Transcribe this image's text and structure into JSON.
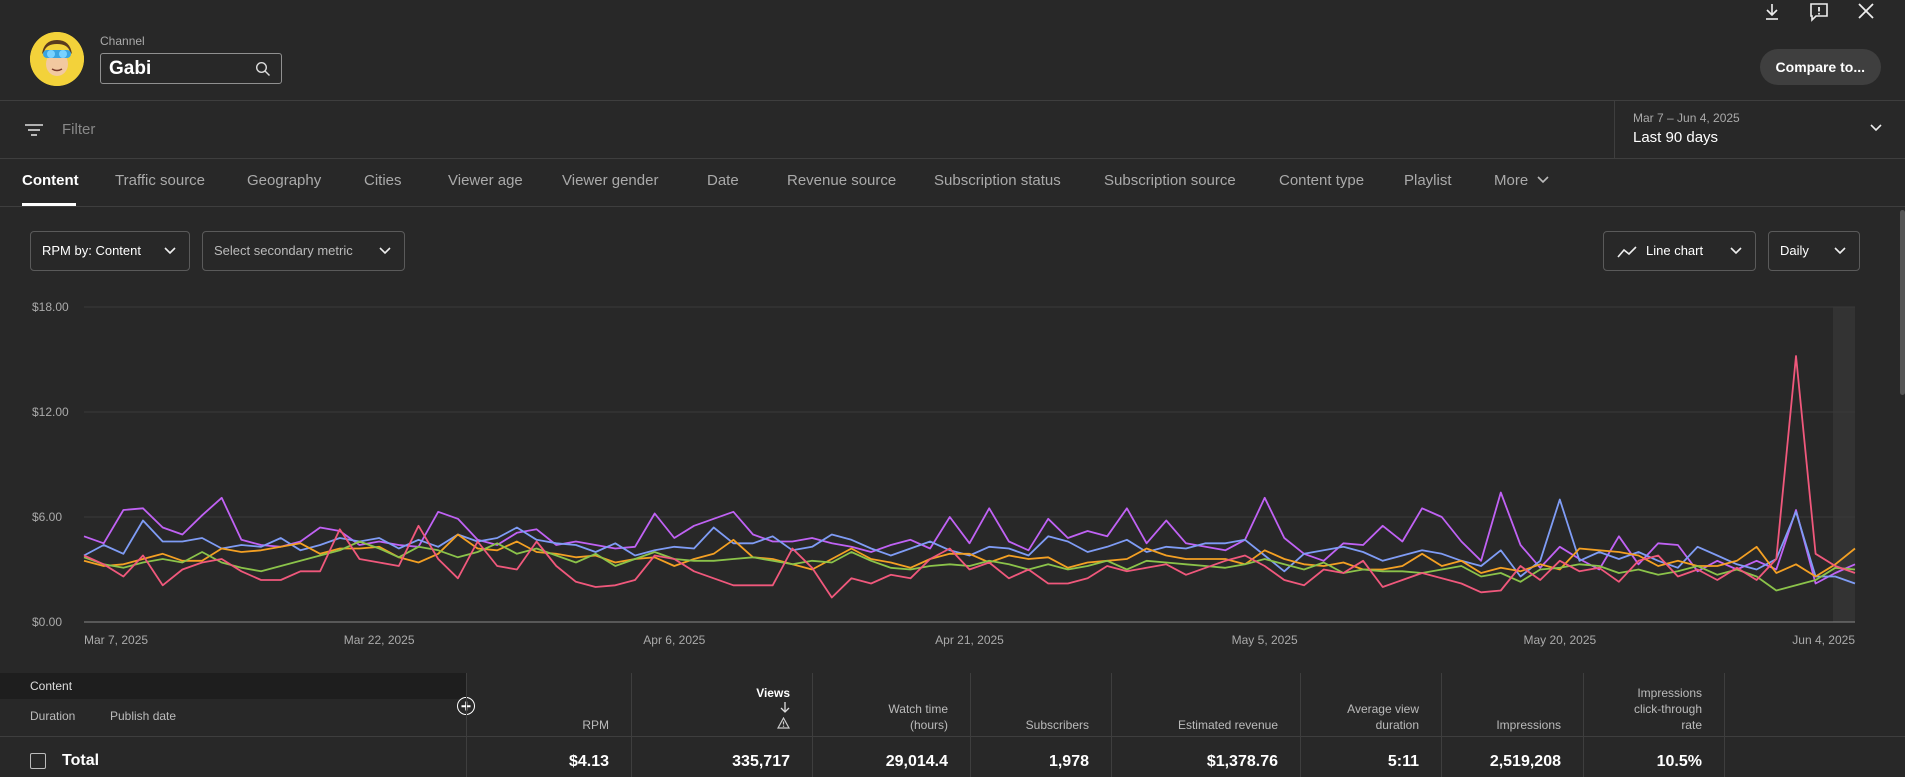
{
  "header": {
    "channel_label": "Channel",
    "channel_name": "Gabi",
    "compare_label": "Compare to..."
  },
  "filter": {
    "placeholder": "Filter"
  },
  "date_range": {
    "range": "Mar 7 – Jun 4, 2025",
    "preset": "Last 90 days"
  },
  "tabs": [
    "Content",
    "Traffic source",
    "Geography",
    "Cities",
    "Viewer age",
    "Viewer gender",
    "Date",
    "Revenue source",
    "Subscription status",
    "Subscription source",
    "Content type",
    "Playlist",
    "More"
  ],
  "controls": {
    "primary_metric": "RPM by: Content",
    "secondary_metric": "Select secondary metric",
    "chart_type": "Line chart",
    "interval": "Daily"
  },
  "chart_data": {
    "type": "line",
    "x_start": "Mar 7, 2025",
    "x_ticks": [
      "Mar 7, 2025",
      "Mar 22, 2025",
      "Apr 6, 2025",
      "Apr 21, 2025",
      "May 5, 2025",
      "May 20, 2025",
      "Jun 4, 2025"
    ],
    "y_ticks": [
      "$18.00",
      "$12.00",
      "$6.00",
      "$0.00"
    ],
    "ylim": [
      0,
      18
    ],
    "grid": true,
    "series": [
      {
        "color": "#c062f4",
        "values": [
          4.9,
          4.5,
          6.4,
          6.5,
          5.4,
          5.0,
          6.1,
          7.1,
          4.7,
          4.4,
          4.3,
          4.6,
          5.4,
          5.2,
          4.4,
          4.6,
          4.4,
          4.3,
          6.3,
          5.9,
          4.7,
          4.4,
          5.1,
          5.3,
          4.4,
          4.6,
          4.4,
          4.2,
          4.3,
          6.2,
          4.8,
          5.5,
          5.9,
          6.3,
          5.0,
          4.6,
          4.6,
          4.8,
          4.5,
          4.3,
          4.0,
          4.4,
          4.7,
          4.2,
          6.0,
          4.5,
          6.5,
          4.6,
          4.1,
          5.9,
          4.8,
          5.2,
          4.9,
          6.5,
          4.5,
          5.8,
          4.5,
          4.3,
          4.1,
          4.7,
          7.1,
          4.8,
          3.9,
          3.5,
          4.5,
          4.4,
          5.5,
          4.6,
          6.5,
          6.0,
          4.6,
          3.5,
          7.4,
          4.4,
          3.1,
          4.3,
          3.6,
          3.0,
          4.9,
          3.3,
          4.5,
          4.4,
          2.9,
          3.5,
          3.0,
          3.5,
          3.0,
          6.4,
          2.2,
          2.8,
          3.3
        ]
      },
      {
        "color": "#7f9cf5",
        "values": [
          3.8,
          4.4,
          3.9,
          5.8,
          4.6,
          4.6,
          4.8,
          4.2,
          4.4,
          4.3,
          4.8,
          4.1,
          4.4,
          4.8,
          4.6,
          4.8,
          4.2,
          4.7,
          4.3,
          5.0,
          4.6,
          4.8,
          5.4,
          4.7,
          4.5,
          4.4,
          4.0,
          4.5,
          3.8,
          4.1,
          4.3,
          4.2,
          5.4,
          4.5,
          4.5,
          4.9,
          4.1,
          4.3,
          5.0,
          4.7,
          4.2,
          3.8,
          4.2,
          4.6,
          4.1,
          3.8,
          4.3,
          4.2,
          3.8,
          4.9,
          4.6,
          4.0,
          4.3,
          4.7,
          4.0,
          4.3,
          4.2,
          4.5,
          4.5,
          4.7,
          3.8,
          2.9,
          3.9,
          4.1,
          4.3,
          4.0,
          3.5,
          3.8,
          4.1,
          3.9,
          3.5,
          3.2,
          4.1,
          2.6,
          3.5,
          7.0,
          3.5,
          4.0,
          3.6,
          4.0,
          3.5,
          3.1,
          4.3,
          3.8,
          3.3,
          3.0,
          3.6,
          6.3,
          2.6,
          2.6,
          2.2
        ]
      },
      {
        "color": "#f4a023",
        "values": [
          3.5,
          3.2,
          3.3,
          3.6,
          3.9,
          3.5,
          3.5,
          4.2,
          4.0,
          4.1,
          4.3,
          4.5,
          3.9,
          4.2,
          4.2,
          4.3,
          3.7,
          3.4,
          3.9,
          5.0,
          4.2,
          4.1,
          4.6,
          4.0,
          3.9,
          3.7,
          3.8,
          3.4,
          3.6,
          3.7,
          3.2,
          3.6,
          3.9,
          4.7,
          3.7,
          3.6,
          3.3,
          3.0,
          3.6,
          4.2,
          3.6,
          3.4,
          3.1,
          3.6,
          3.9,
          3.9,
          3.4,
          3.8,
          3.6,
          3.7,
          3.1,
          3.4,
          3.5,
          3.6,
          4.2,
          3.8,
          3.6,
          3.6,
          3.6,
          3.3,
          4.1,
          3.6,
          3.3,
          3.2,
          3.4,
          3.0,
          3.0,
          3.2,
          3.9,
          3.2,
          3.5,
          2.8,
          3.1,
          2.9,
          3.3,
          3.0,
          4.2,
          4.1,
          4.0,
          3.8,
          3.2,
          3.5,
          3.2,
          3.2,
          3.5,
          4.3,
          2.8,
          3.3,
          2.6,
          3.3,
          4.2
        ]
      },
      {
        "color": "#8bc34a",
        "values": [
          3.7,
          3.3,
          3.1,
          3.4,
          3.6,
          3.4,
          4.0,
          3.4,
          3.1,
          2.9,
          3.2,
          3.5,
          3.8,
          4.1,
          4.6,
          4.2,
          3.7,
          4.3,
          4.1,
          3.7,
          4.0,
          4.5,
          3.9,
          4.2,
          3.8,
          3.4,
          3.9,
          3.2,
          3.6,
          4.0,
          3.6,
          3.5,
          3.5,
          3.6,
          3.7,
          3.5,
          3.3,
          3.5,
          3.4,
          4.0,
          3.5,
          3.1,
          3.0,
          3.2,
          3.3,
          3.2,
          3.5,
          3.3,
          3.0,
          3.3,
          3.0,
          3.2,
          3.5,
          3.0,
          3.5,
          3.4,
          3.3,
          3.2,
          3.1,
          3.3,
          3.6,
          3.3,
          3.0,
          3.4,
          2.8,
          3.0,
          2.9,
          2.9,
          2.8,
          3.0,
          3.2,
          2.6,
          2.8,
          2.3,
          3.0,
          3.1,
          3.3,
          3.2,
          2.8,
          3.0,
          2.7,
          2.9,
          3.2,
          2.7,
          3.0,
          2.6,
          1.8,
          2.1,
          2.4,
          3.1,
          3.0
        ]
      },
      {
        "color": "#f0587c",
        "values": [
          3.8,
          3.3,
          2.6,
          3.8,
          2.1,
          3.0,
          3.4,
          3.6,
          2.9,
          2.4,
          2.4,
          2.9,
          2.9,
          5.3,
          3.6,
          3.4,
          3.2,
          5.5,
          3.6,
          2.5,
          4.6,
          3.2,
          3.0,
          4.6,
          3.2,
          2.3,
          2.0,
          2.1,
          2.4,
          3.8,
          3.6,
          2.9,
          2.5,
          2.1,
          2.1,
          2.1,
          4.2,
          3.1,
          1.4,
          2.5,
          2.2,
          2.7,
          2.5,
          3.6,
          4.2,
          3.0,
          3.4,
          2.5,
          3.0,
          2.2,
          2.2,
          2.5,
          3.2,
          2.9,
          3.1,
          3.3,
          2.7,
          3.1,
          3.5,
          3.8,
          3.2,
          2.4,
          2.1,
          3.0,
          2.8,
          3.5,
          2.0,
          2.4,
          2.8,
          2.5,
          2.2,
          1.7,
          1.8,
          3.2,
          2.4,
          3.5,
          2.9,
          3.1,
          2.3,
          3.5,
          3.8,
          2.6,
          3.0,
          2.4,
          3.1,
          2.4,
          3.6,
          15.2,
          3.9,
          3.2,
          2.8
        ]
      }
    ]
  },
  "table": {
    "content_header": "Content",
    "duration_label": "Duration",
    "publish_date_label": "Publish date",
    "total_label": "Total",
    "columns": [
      {
        "label": "RPM",
        "value": "$4.13"
      },
      {
        "label": "Views",
        "value": "335,717"
      },
      {
        "label": "Watch time\n(hours)",
        "value": "29,014.4"
      },
      {
        "label": "Subscribers",
        "value": "1,978"
      },
      {
        "label": "Estimated revenue",
        "value": "$1,378.76"
      },
      {
        "label": "Average view\nduration",
        "value": "5:11"
      },
      {
        "label": "Impressions",
        "value": "2,519,208"
      },
      {
        "label": "Impressions\nclick-through\nrate",
        "value": "10.5%"
      }
    ]
  }
}
